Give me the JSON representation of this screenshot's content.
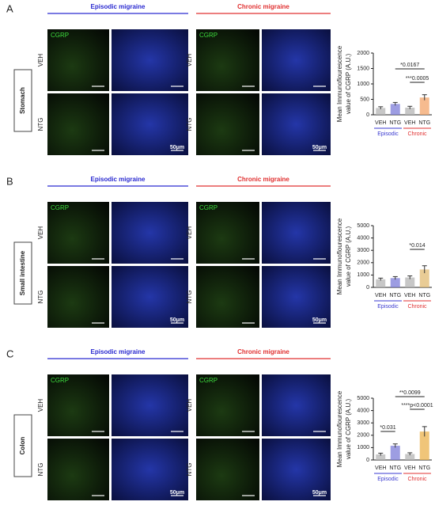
{
  "panels": [
    {
      "letter": "A",
      "organ": "Stomach",
      "episodic_title": "Episodic migraine",
      "chronic_title": "Chronic migraine",
      "image_label": "CGRP",
      "row_labels": [
        "VEH",
        "NTG"
      ],
      "scale_label": "50μm"
    },
    {
      "letter": "B",
      "organ": "Small intestine",
      "episodic_title": "Episodic migraine",
      "chronic_title": "Chronic migraine",
      "image_label": "CGRP",
      "row_labels": [
        "VEH",
        "NTG"
      ],
      "scale_label": "50μm"
    },
    {
      "letter": "C",
      "organ": "Colon",
      "episodic_title": "Episodic migraine",
      "chronic_title": "Chronic migraine",
      "image_label": "CGRP",
      "row_labels": [
        "VEH",
        "NTG"
      ],
      "scale_label": "50μm"
    }
  ],
  "chart_data": [
    {
      "type": "bar",
      "ylabel": [
        "Mean Immunoflourescence",
        "value of CGRP (A.U.)"
      ],
      "categories": [
        "VEH",
        "NTG",
        "VEH",
        "NTG"
      ],
      "values": [
        220,
        350,
        230,
        560
      ],
      "errors": [
        40,
        50,
        45,
        90
      ],
      "colors": [
        "#b4b4b4",
        "#7c7cd8",
        "#b4b4b4",
        "#f3a46a"
      ],
      "groups": [
        {
          "name": "Episodic",
          "color": "#3a3ad0"
        },
        {
          "name": "Chronic",
          "color": "#e03030"
        }
      ],
      "ylim": [
        0,
        2000
      ],
      "yticks": [
        0,
        500,
        1000,
        1500,
        2000
      ],
      "annotations": [
        "*0.0167",
        "***0.0005"
      ]
    },
    {
      "type": "bar",
      "ylabel": [
        "Mean Immunoflourescence",
        "value of CGRP (A.U.)"
      ],
      "categories": [
        "VEH",
        "NTG",
        "VEH",
        "NTG"
      ],
      "values": [
        650,
        750,
        800,
        1450
      ],
      "errors": [
        100,
        120,
        130,
        300
      ],
      "colors": [
        "#b4b4b4",
        "#7c7cd8",
        "#b4b4b4",
        "#e2bb72"
      ],
      "groups": [
        {
          "name": "Episodic",
          "color": "#3a3ad0"
        },
        {
          "name": "Chronic",
          "color": "#e03030"
        }
      ],
      "ylim": [
        0,
        5000
      ],
      "yticks": [
        0,
        1000,
        2000,
        3000,
        4000,
        5000
      ],
      "annotations": [
        "*0.014"
      ]
    },
    {
      "type": "bar",
      "ylabel": [
        "Mean Immunoflourescence",
        "value of CGRP (A.U.)"
      ],
      "categories": [
        "VEH",
        "NTG",
        "VEH",
        "NTG"
      ],
      "values": [
        450,
        1150,
        480,
        2300
      ],
      "errors": [
        100,
        150,
        100,
        400
      ],
      "colors": [
        "#b4b4b4",
        "#7c7cd8",
        "#b4b4b4",
        "#ebb24c"
      ],
      "groups": [
        {
          "name": "Episodic",
          "color": "#3a3ad0"
        },
        {
          "name": "Chronic",
          "color": "#e03030"
        }
      ],
      "ylim": [
        0,
        5000
      ],
      "yticks": [
        0,
        1000,
        2000,
        3000,
        4000,
        5000
      ],
      "annotations": [
        "**0.0099",
        "****p<0.0001",
        "*0.031"
      ]
    }
  ]
}
